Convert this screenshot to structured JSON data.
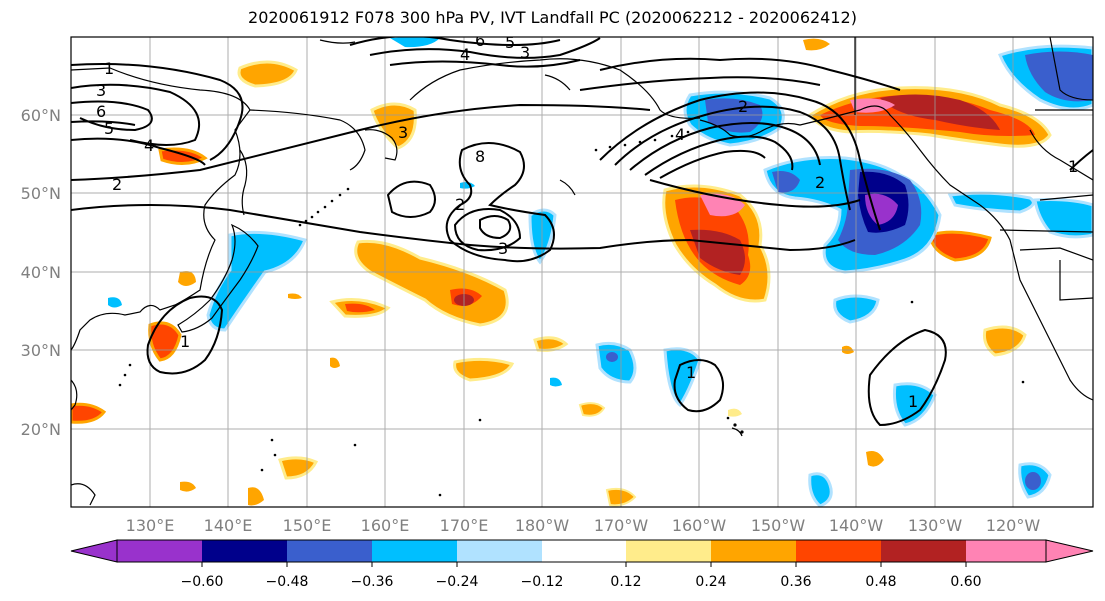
{
  "title": "2020061912 F078 300 hPa PV, IVT Landfall PC (2020062212 - 2020062412)",
  "colors": {
    "land_outline": "#000000",
    "grid": "#9a9a9a",
    "tick_label": "#808080"
  },
  "lat_labels": [
    "60°N",
    "50°N",
    "40°N",
    "30°N",
    "20°N"
  ],
  "lon_labels": [
    "130°E",
    "140°E",
    "150°E",
    "160°E",
    "170°E",
    "180°W",
    "170°W",
    "160°W",
    "150°W",
    "140°W",
    "130°W",
    "120°W"
  ],
  "contour_labels": [
    "1",
    "3",
    "6",
    "5",
    "4",
    "2",
    "2",
    "8",
    "3",
    "2",
    "4",
    "3",
    "1",
    "1",
    "2",
    "6",
    "5",
    "4",
    "3",
    "1",
    "1"
  ],
  "colorbar": {
    "colors": [
      "#9932cc",
      "#00008b",
      "#3a5fcd",
      "#00bfff",
      "#b0e2ff",
      "#ffffff",
      "#ffec8b",
      "#ffa500",
      "#ff4500",
      "#b22222",
      "#ff83b4"
    ],
    "ticks": [
      "−0.60",
      "−0.48",
      "−0.36",
      "−0.24",
      "−0.12",
      "0.12",
      "0.24",
      "0.36",
      "0.48",
      "0.60"
    ]
  }
}
